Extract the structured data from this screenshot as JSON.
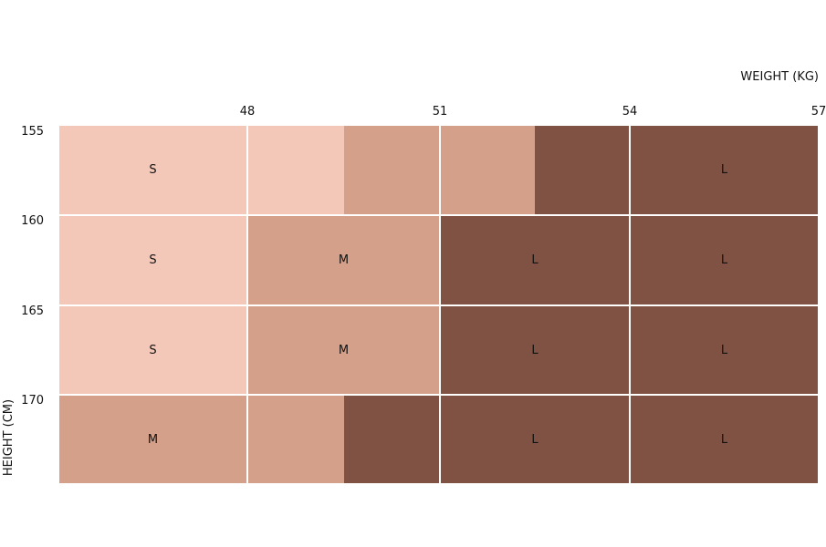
{
  "x_axis_label": "WEIGHT (KG)",
  "y_axis_label": "HEIGHT (CM)",
  "column_ticks": [
    "48",
    "51",
    "54",
    "57"
  ],
  "row_ticks": [
    "155",
    "160",
    "165",
    "170"
  ],
  "rows": [
    [
      {
        "label": "S",
        "color": "#f4c8b8"
      },
      {
        "colors": [
          "#f4c8b8",
          "#d4a08a"
        ]
      },
      {
        "colors": [
          "#d4a08a",
          "#805243"
        ]
      },
      {
        "label": "L",
        "color": "#805243"
      }
    ],
    [
      {
        "label": "S",
        "color": "#f4c8b8"
      },
      {
        "label": "M",
        "color": "#d4a08a"
      },
      {
        "label": "L",
        "color": "#805243"
      },
      {
        "label": "L",
        "color": "#805243"
      }
    ],
    [
      {
        "label": "S",
        "color": "#f4c8b8"
      },
      {
        "label": "M",
        "color": "#d4a08a"
      },
      {
        "label": "L",
        "color": "#805243"
      },
      {
        "label": "L",
        "color": "#805243"
      }
    ],
    [
      {
        "label": "M",
        "color": "#d4a08a"
      },
      {
        "colors": [
          "#d4a08a",
          "#805243"
        ]
      },
      {
        "label": "L",
        "color": "#805243"
      },
      {
        "label": "L",
        "color": "#805243"
      }
    ]
  ]
}
